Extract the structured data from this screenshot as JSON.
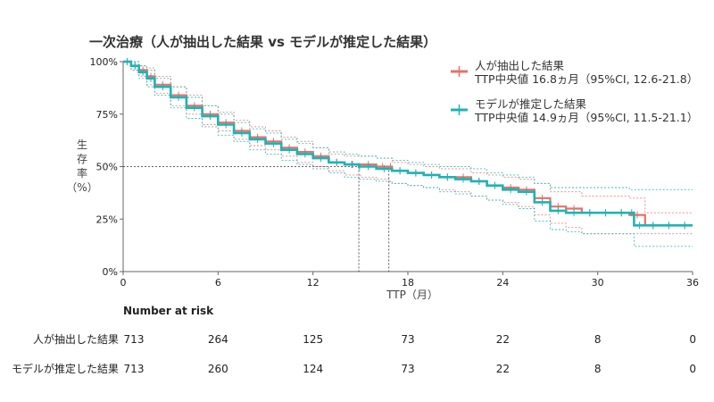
{
  "chart_data": {
    "type": "line",
    "title": "一次治療（人が抽出した結果 vs モデルが推定した結果）",
    "xlabel": "TTP（月）",
    "ylabel_chars": [
      "生",
      "存",
      "率",
      "（%）"
    ],
    "xlim": [
      0,
      36
    ],
    "ylim": [
      0,
      100
    ],
    "x_ticks": [
      0,
      6,
      12,
      18,
      24,
      30,
      36
    ],
    "x_tick_labels": [
      "0",
      "6",
      "12",
      "18",
      "24",
      "30",
      "36"
    ],
    "y_ticks": [
      0,
      25,
      50,
      75,
      100
    ],
    "y_tick_labels": [
      "0%",
      "25%",
      "50%",
      "75%",
      "100%"
    ],
    "legend_position": "top-right",
    "median_reference": {
      "y": 50,
      "x_values": [
        14.9,
        16.8
      ]
    },
    "series": [
      {
        "name": "人が抽出した結果",
        "legend_detail": "TTP中央値 16.8ヵ月（95%CI, 12.6-21.8）",
        "color": "#e8706a",
        "x": [
          0,
          0.5,
          1,
          1.5,
          2,
          3,
          4,
          5,
          6,
          7,
          8,
          9,
          10,
          11,
          12,
          13,
          14,
          15,
          16,
          16.8,
          17,
          18,
          19,
          20,
          21,
          22,
          23,
          24,
          25,
          26,
          27,
          28,
          29,
          30,
          31,
          32,
          33,
          34,
          35,
          36
        ],
        "y": [
          100,
          98,
          96,
          93,
          89,
          84,
          79,
          75,
          71,
          67,
          64,
          62,
          59,
          57,
          55,
          52,
          51,
          51,
          50,
          50,
          48,
          47,
          46,
          45,
          45,
          43,
          41,
          40,
          39,
          35,
          31,
          30,
          28,
          28,
          28,
          27,
          22,
          22,
          22,
          22
        ],
        "ci_lower": [
          100,
          96,
          93,
          89,
          85,
          79,
          75,
          70,
          67,
          63,
          60,
          58,
          55,
          52,
          50,
          48,
          46,
          45,
          44,
          43,
          42,
          41,
          40,
          39,
          38,
          36,
          34,
          33,
          31,
          27,
          23,
          21,
          18,
          18,
          18,
          18,
          18,
          18,
          18,
          18
        ],
        "ci_upper": [
          100,
          100,
          98,
          97,
          93,
          88,
          84,
          79,
          76,
          72,
          69,
          67,
          64,
          62,
          59,
          56,
          55,
          55,
          54,
          54,
          52,
          51,
          50,
          49,
          49,
          47,
          46,
          45,
          44,
          42,
          38,
          38,
          36,
          36,
          36,
          35,
          28,
          28,
          28,
          28
        ]
      },
      {
        "name": "モデルが推定した結果",
        "legend_detail": "TTP中央値 14.9ヵ月（95%CI, 11.5-21.1）",
        "color": "#1fb3b3",
        "x": [
          0,
          0.5,
          1,
          1.5,
          2,
          3,
          4,
          5,
          6,
          7,
          8,
          9,
          10,
          11,
          12,
          13,
          14,
          14.9,
          15,
          16,
          17,
          18,
          19,
          20,
          21,
          22,
          23,
          24,
          25,
          26,
          27,
          28,
          29,
          30,
          31,
          32,
          32.3,
          33,
          34,
          35,
          36
        ],
        "y": [
          100,
          98,
          95,
          92,
          88,
          83,
          78,
          74,
          70,
          66,
          63,
          61,
          58,
          56,
          54,
          52,
          51,
          50,
          50,
          49,
          48,
          47,
          46,
          45,
          44,
          43,
          41,
          39,
          38,
          33,
          29,
          28,
          28,
          28,
          28,
          28,
          22,
          22,
          22,
          22,
          22
        ],
        "ci_lower": [
          100,
          96,
          92,
          88,
          84,
          78,
          73,
          69,
          65,
          62,
          58,
          56,
          53,
          51,
          49,
          47,
          45,
          44,
          44,
          43,
          42,
          41,
          40,
          38,
          37,
          36,
          34,
          32,
          30,
          24,
          20,
          19,
          18,
          18,
          18,
          18,
          12,
          12,
          12,
          12,
          12
        ],
        "ci_upper": [
          100,
          100,
          98,
          96,
          92,
          88,
          83,
          79,
          75,
          71,
          68,
          66,
          63,
          61,
          59,
          57,
          56,
          55,
          55,
          54,
          53,
          52,
          51,
          50,
          50,
          49,
          47,
          46,
          45,
          42,
          40,
          40,
          40,
          40,
          40,
          39,
          39,
          39,
          39,
          39,
          39
        ]
      }
    ]
  },
  "risk_table": {
    "header": "Number at risk",
    "times": [
      0,
      6,
      12,
      18,
      24,
      30,
      36
    ],
    "rows": [
      {
        "label": "人が抽出した結果",
        "values": [
          "713",
          "264",
          "125",
          "73",
          "22",
          "8",
          "0"
        ]
      },
      {
        "label": "モデルが推定した結果",
        "values": [
          "713",
          "260",
          "124",
          "73",
          "22",
          "8",
          "0"
        ]
      }
    ]
  }
}
